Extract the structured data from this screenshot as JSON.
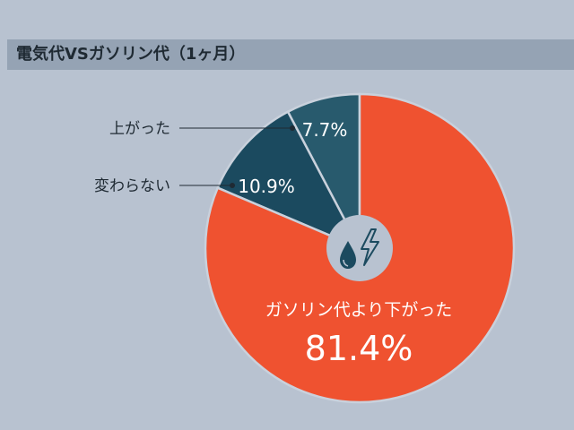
{
  "title": "電気代VSガソリン代（1ヶ月）",
  "colors": {
    "background": "#b8c2d0",
    "title_bar": "#95a3b4",
    "up": "#285a6d",
    "same": "#1b4a5f",
    "down": "#ef5230",
    "center_circle": "#b8c2d0",
    "icon": "#1b4a5f"
  },
  "icons": [
    "water-drop-icon",
    "lightning-icon"
  ],
  "chart_data": {
    "type": "pie",
    "title": "電気代VSガソリン代（1ヶ月）",
    "slices": [
      {
        "label": "上がった",
        "value": 7.7,
        "value_label": "7.7%"
      },
      {
        "label": "変わらない",
        "value": 10.9,
        "value_label": "10.9%"
      },
      {
        "label": "ガソリン代より下がった",
        "value": 81.4,
        "value_label": "81.4%"
      }
    ],
    "start": "12 o'clock",
    "direction": "counter-clockwise",
    "legend": "none (callout labels)"
  }
}
